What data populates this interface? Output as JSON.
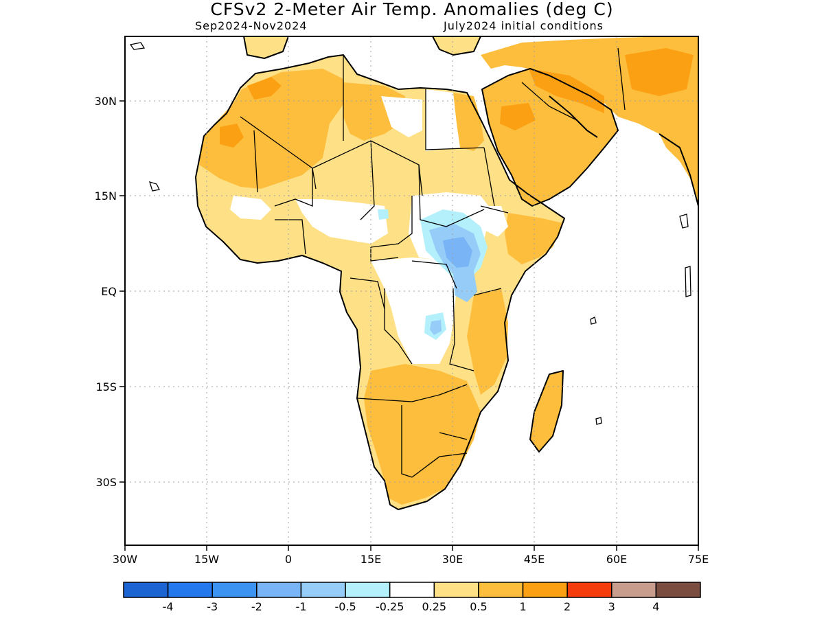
{
  "title": "CFSv2 2-Meter Air Temp. Anomalies (deg C)",
  "subtitle_left": "Sep2024-Nov2024",
  "subtitle_right": "July2024 initial conditions",
  "map": {
    "region": "Africa",
    "lon_range": [
      -30,
      75
    ],
    "lat_range": [
      -40,
      40
    ],
    "x_ticks": [
      "30W",
      "15W",
      "0",
      "15E",
      "30E",
      "45E",
      "60E",
      "75E"
    ],
    "y_ticks": [
      "30N",
      "15N",
      "EQ",
      "15S",
      "30S"
    ],
    "grid": "dotted"
  },
  "colorbar": {
    "labels": [
      "-4",
      "-3",
      "-2",
      "-1",
      "-0.5",
      "-0.25",
      "0.25",
      "0.5",
      "1",
      "2",
      "3",
      "4"
    ],
    "colors": [
      "#1c64d2",
      "#2278ec",
      "#3d93f2",
      "#78b4f6",
      "#95cdf8",
      "#b3f0fb",
      "#ffffff",
      "#fee086",
      "#fdbe3d",
      "#fca013",
      "#f53c0c",
      "#c99d8e",
      "#7b4d40"
    ]
  },
  "anomaly_colors": {
    "light_orange": "#fee086",
    "orange": "#fdbe3d",
    "dark_orange": "#fca013",
    "light_blue": "#b3f0fb",
    "blue": "#95cdf8",
    "mid_blue": "#78b4f6"
  }
}
